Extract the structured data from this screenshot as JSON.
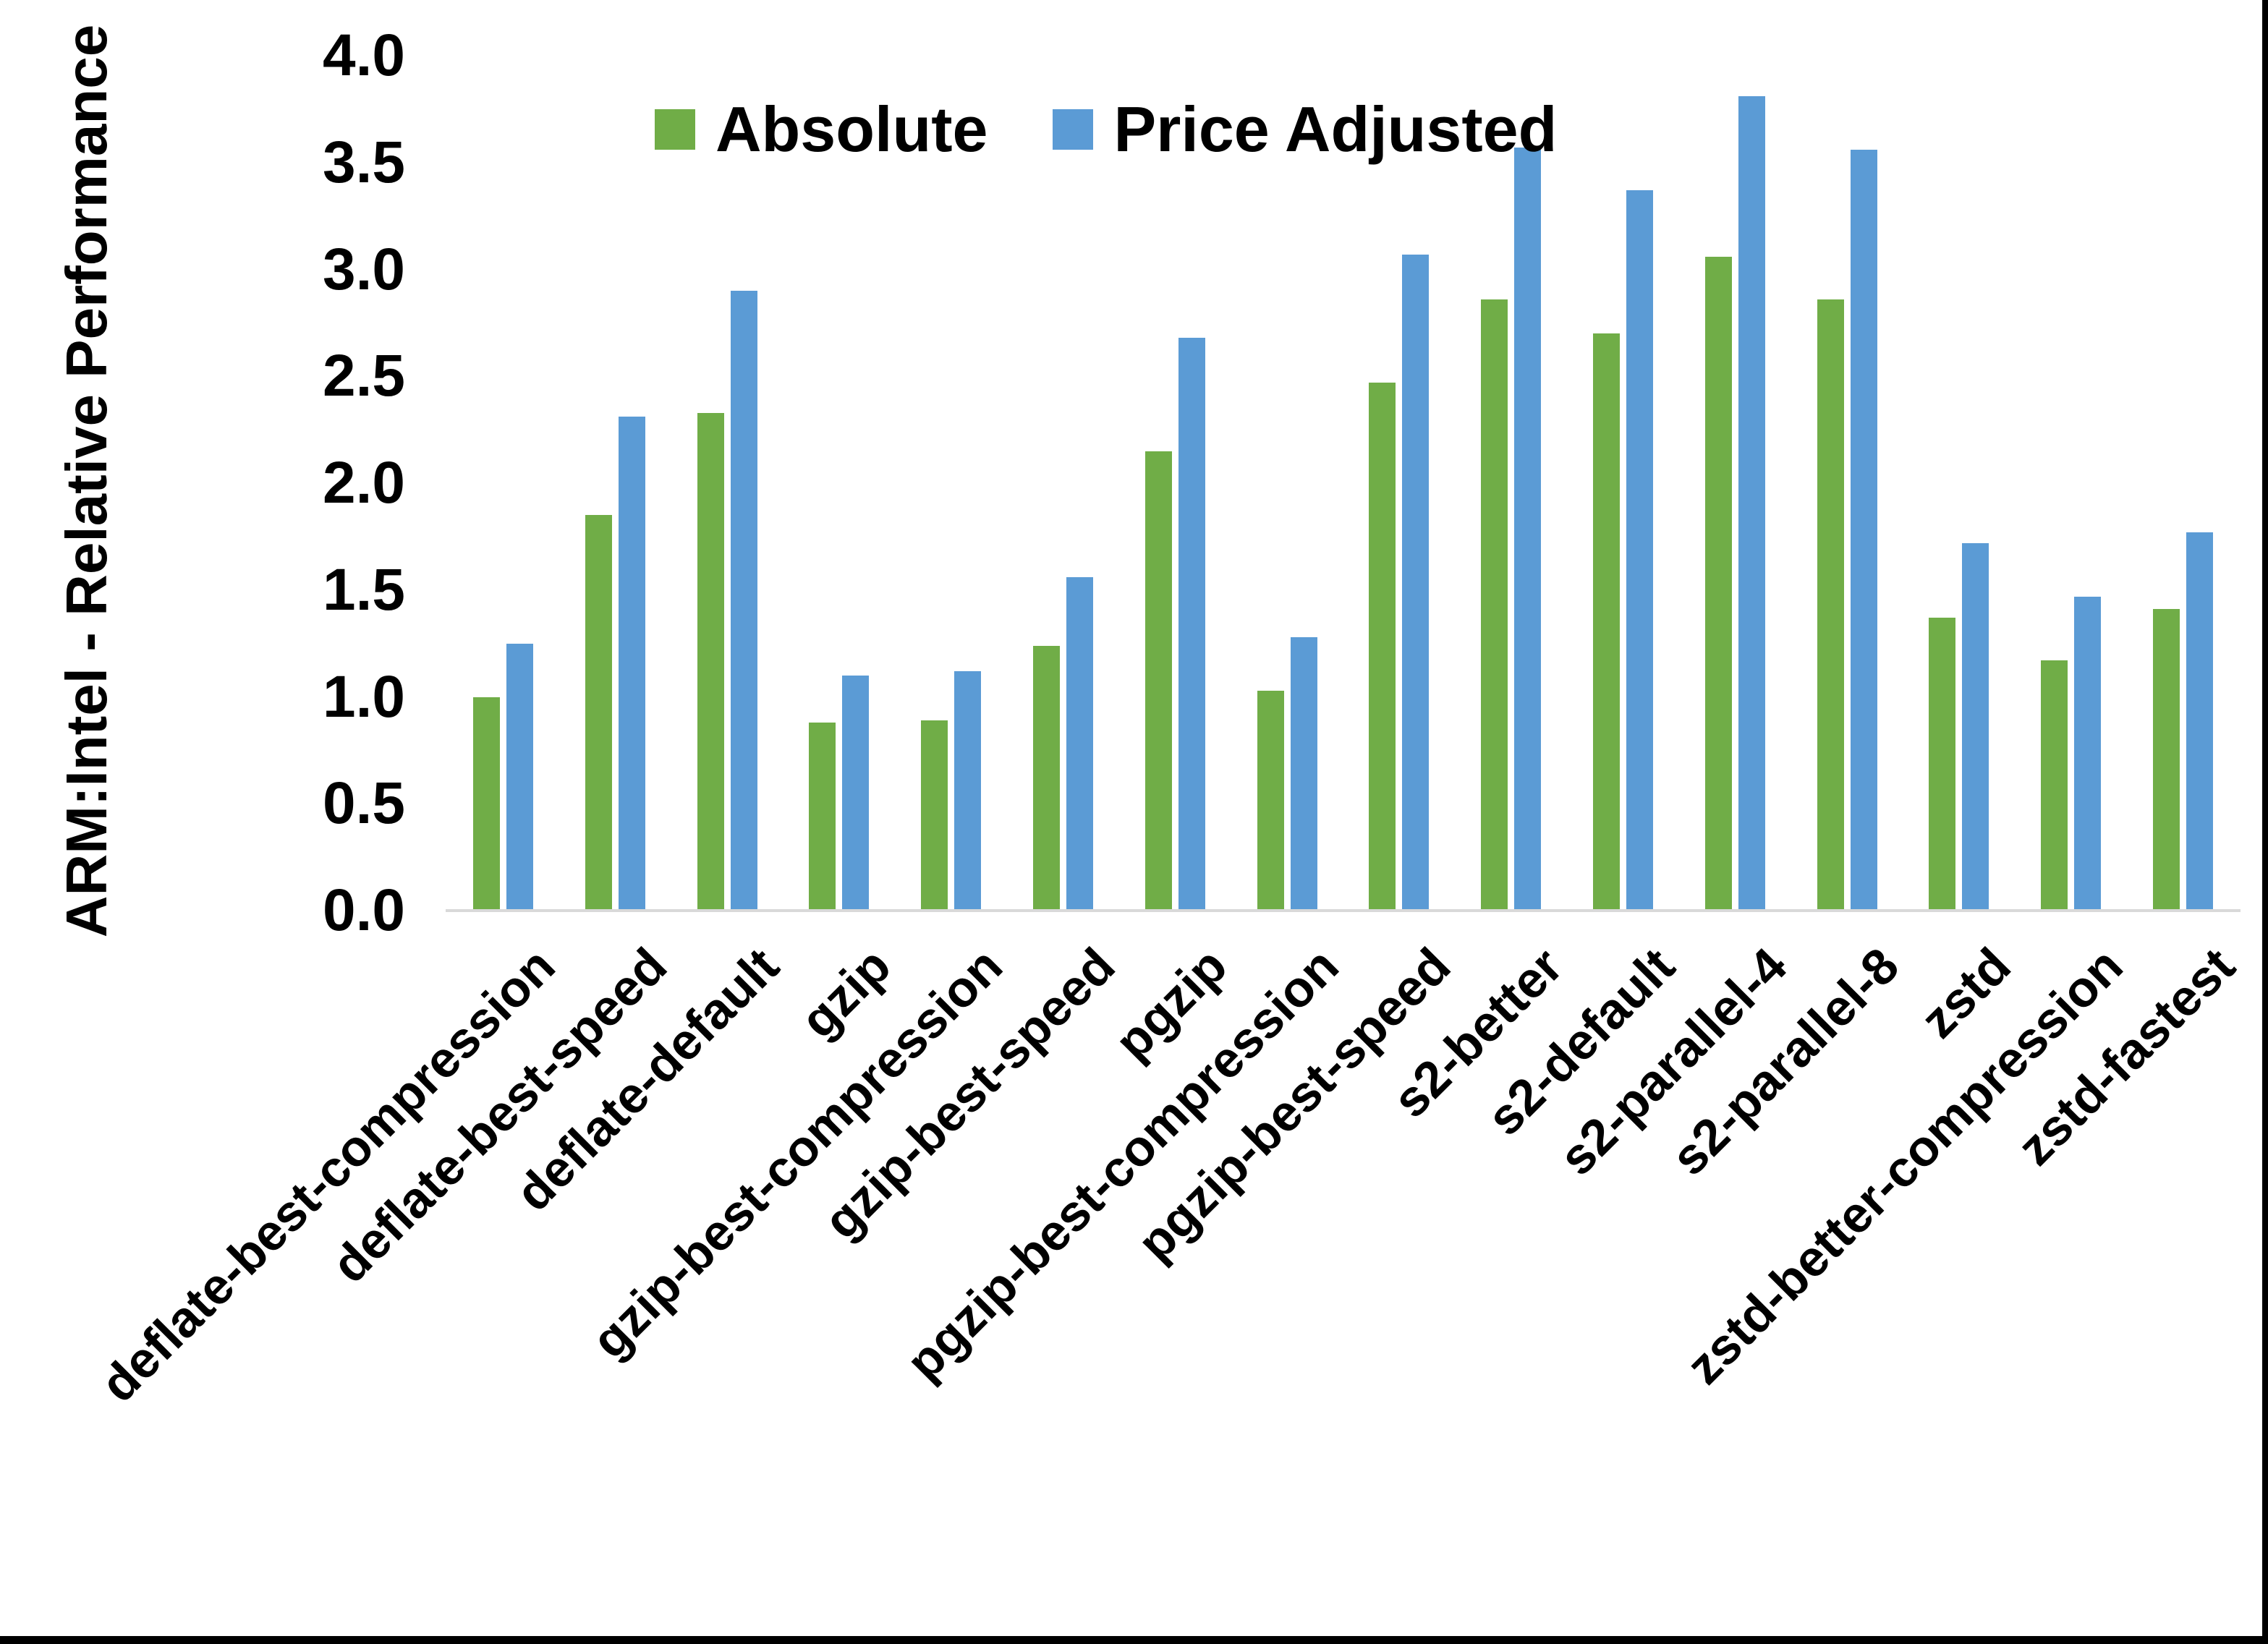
{
  "chart_data": {
    "type": "bar",
    "title": "",
    "xlabel": "",
    "ylabel": "ARM:Intel - Relative Performance",
    "ylim": [
      0.0,
      4.0
    ],
    "ytick_step": 0.5,
    "ytick_labels": [
      "0.0",
      "0.5",
      "1.0",
      "1.5",
      "2.0",
      "2.5",
      "3.0",
      "3.5",
      "4.0"
    ],
    "grid": false,
    "legend_position": "top-center",
    "categories": [
      "deflate-best-compression",
      "deflate-best-speed",
      "deflate-default",
      "gzip",
      "gzip-best-compression",
      "gzip-best-speed",
      "pgzip",
      "pgzip-best-compression",
      "pgzip-best-speed",
      "s2-better",
      "s2-default",
      "s2-parallel-4",
      "s2-parallel-8",
      "zstd",
      "zstd-better-compression",
      "zstd-fastest"
    ],
    "series": [
      {
        "name": "Absolute",
        "color": "#70AD47",
        "values": [
          1.0,
          1.85,
          2.33,
          0.88,
          0.89,
          1.24,
          2.15,
          1.03,
          2.47,
          2.86,
          2.7,
          3.06,
          2.86,
          1.37,
          1.17,
          1.41
        ]
      },
      {
        "name": "Price Adjusted",
        "color": "#5B9BD5",
        "values": [
          1.25,
          2.31,
          2.9,
          1.1,
          1.12,
          1.56,
          2.68,
          1.28,
          3.07,
          3.57,
          3.37,
          3.81,
          3.56,
          1.72,
          1.47,
          1.77
        ]
      }
    ],
    "colors": {
      "axis_line": "#D9D9D9",
      "text": "#000000",
      "background": "#FFFFFF",
      "frame": "#000000"
    }
  }
}
